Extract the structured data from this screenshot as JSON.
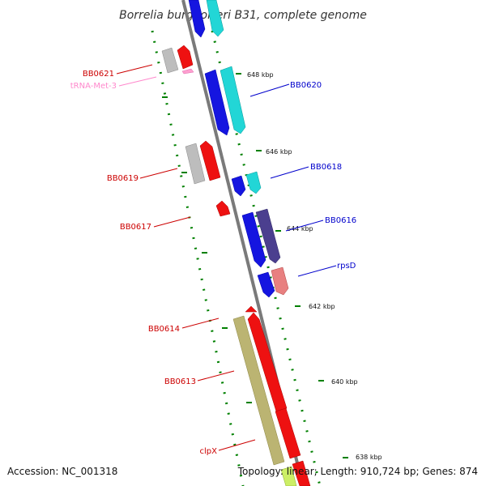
{
  "title": "Borrelia burgdorferi B31, complete genome",
  "footer": {
    "accession": "Accession: NC_001318",
    "info": "Topology: linear; Length: 910,724 bp; Genes: 874"
  },
  "colors": {
    "backbone": "#808080",
    "forward_gene": "#0000ee",
    "forward_cds": "#00cccc",
    "reverse_gene": "#ee0000",
    "reverse_cds": "#bbbbbb",
    "trna": "#ff99cc",
    "ruler": "#008000",
    "other_cds": "#bbb472",
    "dark_cds": "#4b3f8f"
  },
  "ticks": [
    "648 kbp",
    "646 kbp",
    "644 kbp",
    "642 kbp",
    "640 kbp",
    "638 kbp"
  ],
  "labels": {
    "bb0621": "BB0621",
    "trna_met_3": "tRNA-Met-3",
    "bb0620": "BB0620",
    "bb0619": "BB0619",
    "bb0618": "BB0618",
    "bb0617": "BB0617",
    "bb0616": "BB0616",
    "rpsd": "rpsD",
    "bb0614": "BB0614",
    "bb0613": "BB0613",
    "clpx": "clpX"
  }
}
